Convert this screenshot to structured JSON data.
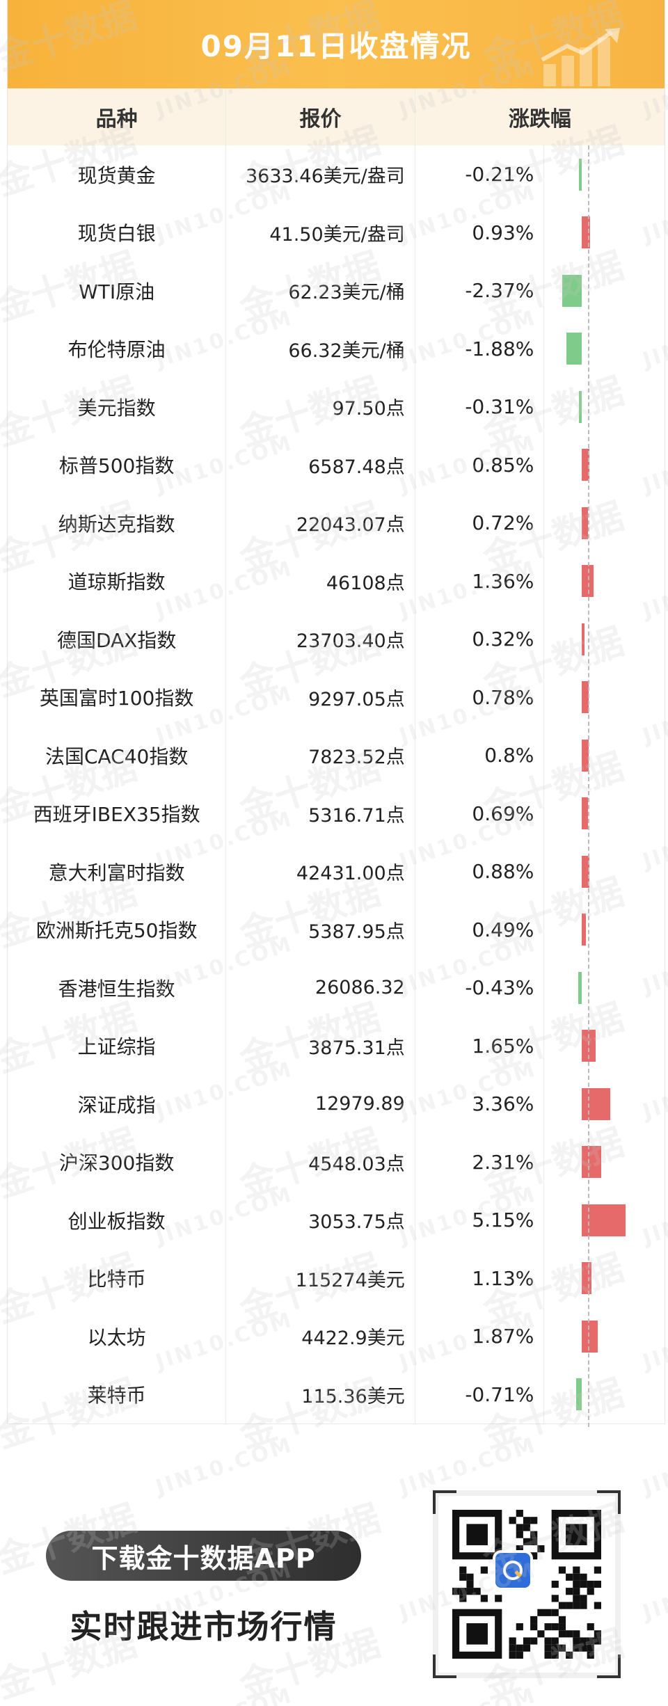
{
  "title": "09月11日收盘情况",
  "headers": [
    "品种",
    "报价",
    "涨跌幅"
  ],
  "rows": [
    {
      "name": "现货黄金",
      "price": "3633.46美元/盎司",
      "change": "-0.21%",
      "value": -0.21
    },
    {
      "name": "现货白银",
      "price": "41.50美元/盎司",
      "change": "0.93%",
      "value": 0.93
    },
    {
      "name": "WTI原油",
      "price": "62.23美元/桶",
      "change": "-2.37%",
      "value": -2.37
    },
    {
      "name": "布伦特原油",
      "price": "66.32美元/桶",
      "change": "-1.88%",
      "value": -1.88
    },
    {
      "name": "美元指数",
      "price": "97.50点",
      "change": "-0.31%",
      "value": -0.31
    },
    {
      "name": "标普500指数",
      "price": "6587.48点",
      "change": "0.85%",
      "value": 0.85
    },
    {
      "name": "纳斯达克指数",
      "price": "22043.07点",
      "change": "0.72%",
      "value": 0.72
    },
    {
      "name": "道琼斯指数",
      "price": "46108点",
      "change": "1.36%",
      "value": 1.36
    },
    {
      "name": "德国DAX指数",
      "price": "23703.40点",
      "change": "0.32%",
      "value": 0.32
    },
    {
      "name": "英国富时100指数",
      "price": "9297.05点",
      "change": "0.78%",
      "value": 0.78
    },
    {
      "name": "法国CAC40指数",
      "price": "7823.52点",
      "change": "0.8%",
      "value": 0.8
    },
    {
      "name": "西班牙IBEX35指数",
      "price": "5316.71点",
      "change": "0.69%",
      "value": 0.69
    },
    {
      "name": "意大利富时指数",
      "price": "42431.00点",
      "change": "0.88%",
      "value": 0.88
    },
    {
      "name": "欧洲斯托克50指数",
      "price": "5387.95点",
      "change": "0.49%",
      "value": 0.49
    },
    {
      "name": "香港恒生指数",
      "price": "26086.32",
      "change": "-0.43%",
      "value": -0.43
    },
    {
      "name": "上证综指",
      "price": "3875.31点",
      "change": "1.65%",
      "value": 1.65
    },
    {
      "name": "深证成指",
      "price": "12979.89",
      "change": "3.36%",
      "value": 3.36
    },
    {
      "name": "沪深300指数",
      "price": "4548.03点",
      "change": "2.31%",
      "value": 2.31
    },
    {
      "name": "创业板指数",
      "price": "3053.75点",
      "change": "5.15%",
      "value": 5.15
    },
    {
      "name": "比特币",
      "price": "115274美元",
      "change": "1.13%",
      "value": 1.13
    },
    {
      "name": "以太坊",
      "price": "4422.9美元",
      "change": "1.87%",
      "value": 1.87
    },
    {
      "name": "莱特币",
      "price": "115.36美元",
      "change": "-0.71%",
      "value": -0.71
    }
  ],
  "colors": {
    "up": "#e76a6a",
    "down": "#7fcb8a",
    "accent": "#f8b442"
  },
  "watermark": {
    "cn": "金十数据",
    "en": "JIN10.COM"
  },
  "promo": {
    "button": "下载金十数据APP",
    "subtitle": "实时跟进市场行情"
  },
  "qr_icon": "qr-code-icon"
}
